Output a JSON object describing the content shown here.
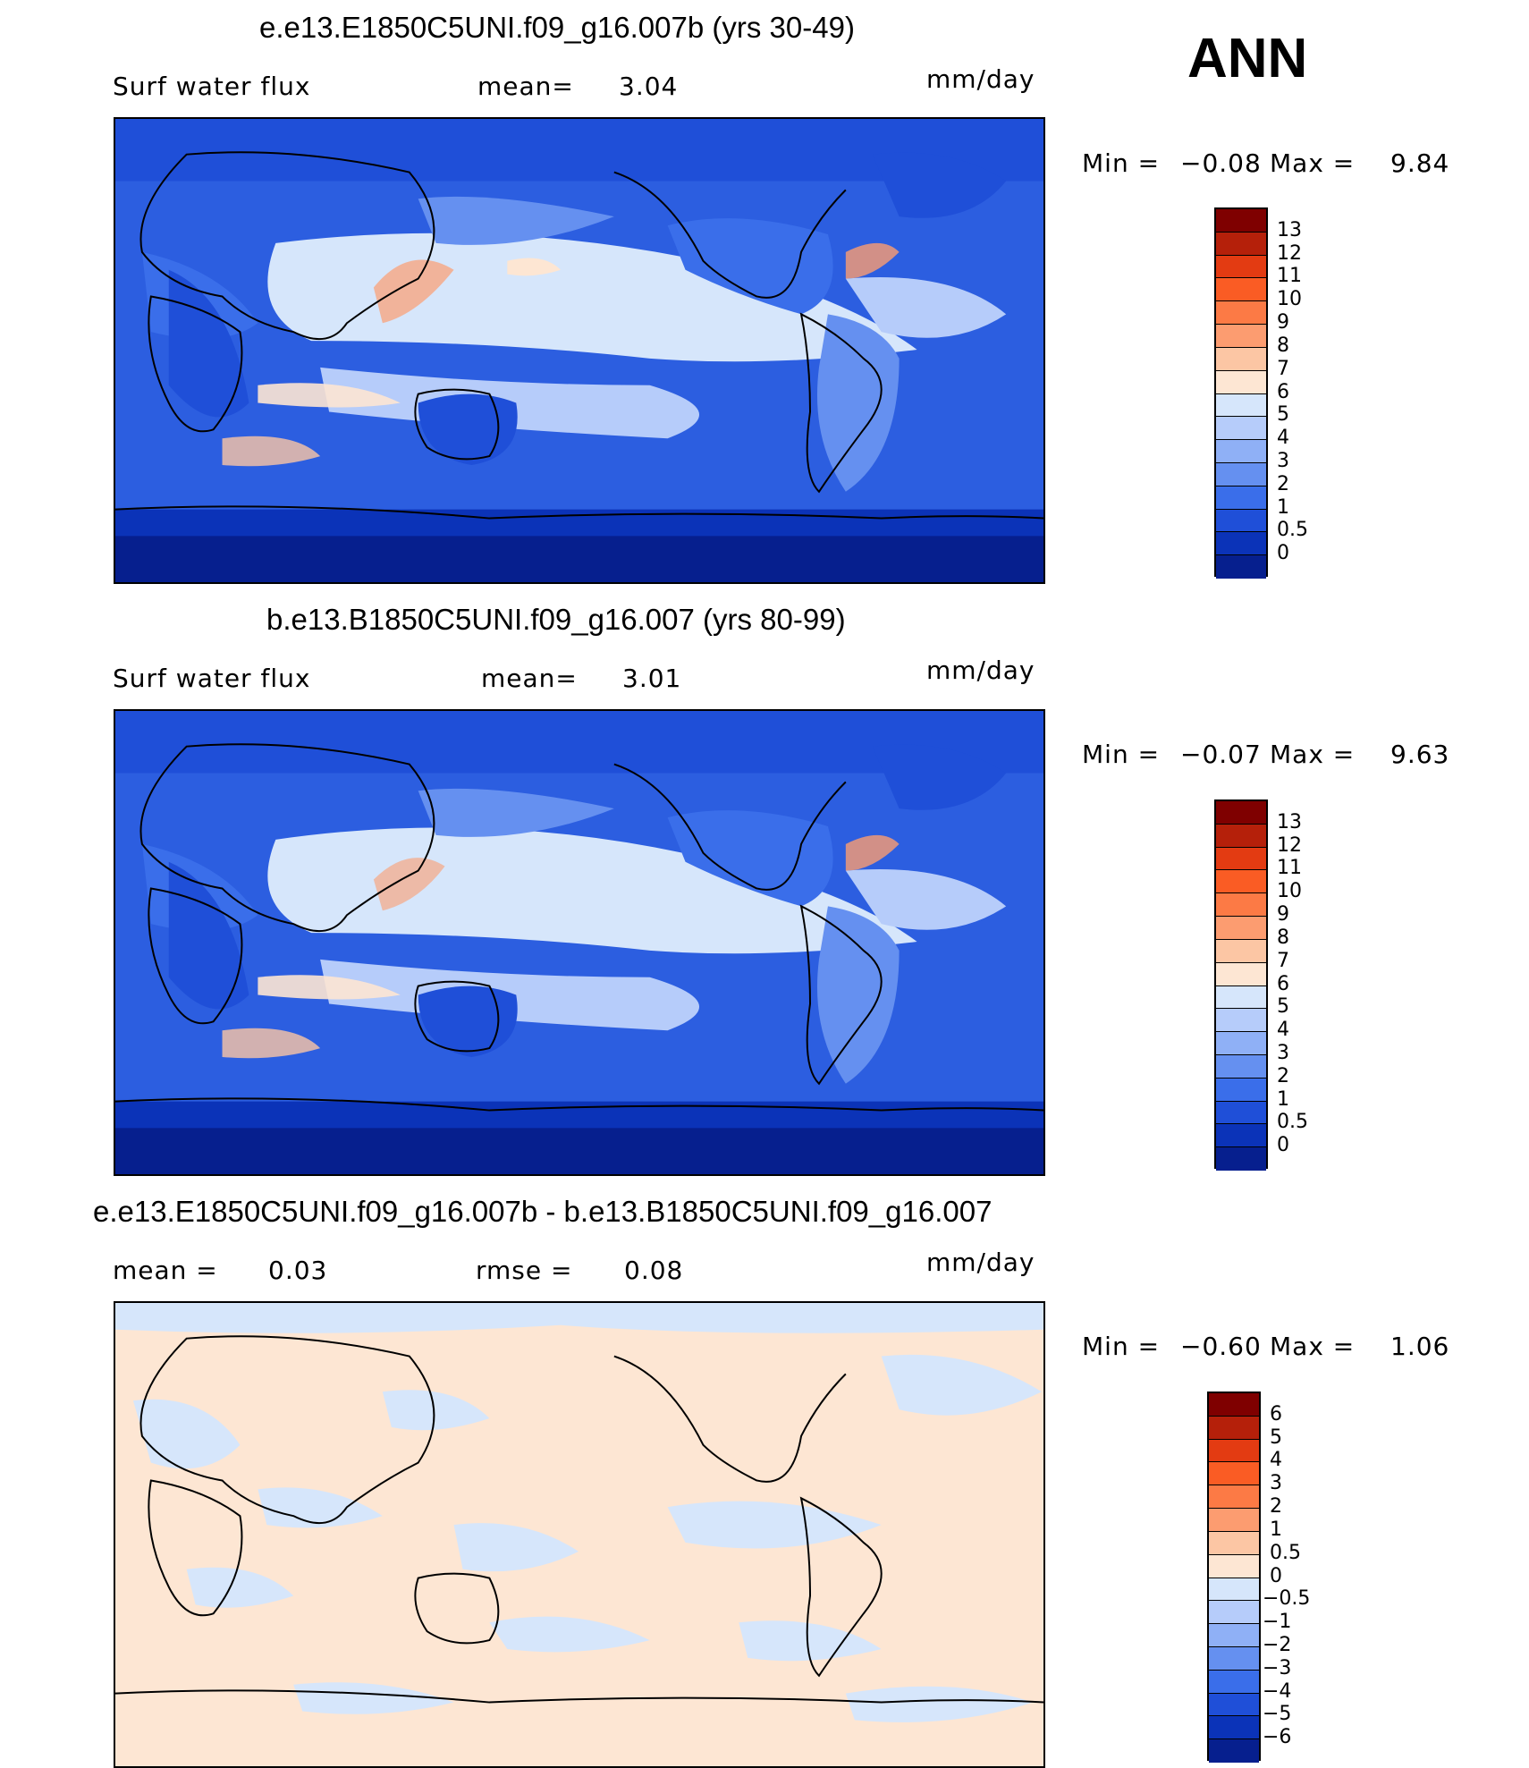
{
  "season": "ANN",
  "panels": [
    {
      "title": "e.e13.E1850C5UNI.f09_g16.007b (yrs 30-49)",
      "left_label": "Surf water flux",
      "mid_label": "mean=",
      "mid_value": "3.04",
      "units": "mm/day",
      "min_label": "Min =",
      "min_value": "−0.08",
      "max_label": "Max =",
      "max_value": "9.84",
      "colorbar_labels": [
        "13",
        "12",
        "11",
        "10",
        "9",
        "8",
        "7",
        "6",
        "5",
        "4",
        "3",
        "2",
        "1",
        "0.5",
        "0"
      ]
    },
    {
      "title": "b.e13.B1850C5UNI.f09_g16.007 (yrs 80-99)",
      "left_label": "Surf water flux",
      "mid_label": "mean=",
      "mid_value": "3.01",
      "units": "mm/day",
      "min_label": "Min =",
      "min_value": "−0.07",
      "max_label": "Max =",
      "max_value": "9.63",
      "colorbar_labels": [
        "13",
        "12",
        "11",
        "10",
        "9",
        "8",
        "7",
        "6",
        "5",
        "4",
        "3",
        "2",
        "1",
        "0.5",
        "0"
      ]
    },
    {
      "title": "e.e13.E1850C5UNI.f09_g16.007b - b.e13.B1850C5UNI.f09_g16.007",
      "left_label": "mean =",
      "left_value": "0.03",
      "mid_label": "rmse =",
      "mid_value": "0.08",
      "units": "mm/day",
      "min_label": "Min =",
      "min_value": "−0.60",
      "max_label": "Max =",
      "max_value": "1.06",
      "colorbar_labels": [
        "6",
        "5",
        "4",
        "3",
        "2",
        "1",
        "0.5",
        "0",
        "−0.5",
        "−1",
        "−2",
        "−3",
        "−4",
        "−5",
        "−6"
      ]
    }
  ],
  "colors": {
    "flux_bar": [
      "#7f0000",
      "#b5200a",
      "#e33b12",
      "#fa5c24",
      "#fc7a45",
      "#fc9c70",
      "#fcc6a4",
      "#fde6d3",
      "#d6e6fb",
      "#b6ccfa",
      "#8fb0f6",
      "#6590f0",
      "#3a6eea",
      "#1f4fd8",
      "#0b33b8",
      "#061f8e"
    ],
    "diff_bar": [
      "#7f0000",
      "#b5200a",
      "#e33b12",
      "#fa5c24",
      "#fc7a45",
      "#fc9c70",
      "#fcc6a4",
      "#fde6d3",
      "#d6e6fb",
      "#b6ccfa",
      "#8fb0f6",
      "#6590f0",
      "#3a6eea",
      "#1f4fd8",
      "#0b33b8",
      "#061f8e"
    ]
  }
}
